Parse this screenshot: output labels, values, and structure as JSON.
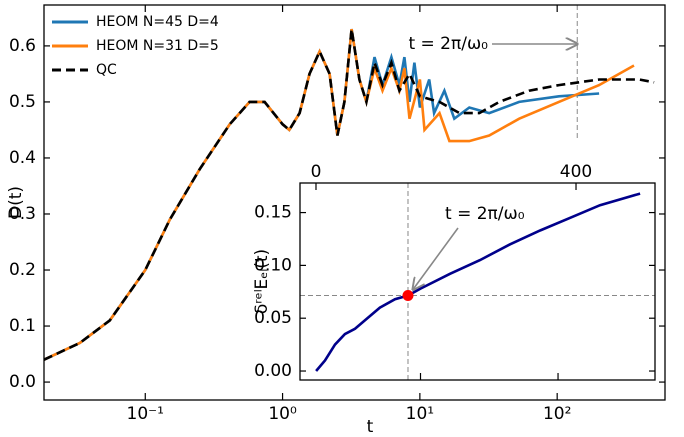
{
  "chart_data": [
    {
      "type": "line",
      "x_label": "t",
      "y_label": "D(t)",
      "xscale": "log",
      "xlim": [
        0.0183,
        610
      ],
      "ylim": [
        -0.032,
        0.673
      ],
      "xticks": [
        {
          "value": 0.1,
          "label": "10⁻¹"
        },
        {
          "value": 1,
          "label": "10⁰"
        },
        {
          "value": 10,
          "label": "10¹"
        },
        {
          "value": 100,
          "label": "10²"
        }
      ],
      "yticks": [
        {
          "value": 0,
          "label": "0.0"
        },
        0.1,
        0.2,
        0.3,
        0.4,
        0.5,
        0.6
      ],
      "legend": "upper left",
      "vline": 140,
      "annotation": "t = 2π/ω₀",
      "series": [
        {
          "name": "HEOM N=45 D=4",
          "color": "#1f77b4",
          "x": [
            0.0183,
            0.0334,
            0.0552,
            0.1,
            0.151,
            0.249,
            0.412,
            0.575,
            0.74,
            1.0,
            1.12,
            1.33,
            1.57,
            1.86,
            2.2,
            2.51,
            2.82,
            3.18,
            3.63,
            4.08,
            4.67,
            5.34,
            6.2,
            7.1,
            7.71,
            8.4,
            9.12,
            10,
            11.7,
            12.7,
            15.1,
            17.8,
            22.9,
            32,
            52.9,
            103,
            202
          ],
          "values": [
            0.04,
            0.07,
            0.11,
            0.2,
            0.29,
            0.38,
            0.46,
            0.5,
            0.5,
            0.46,
            0.45,
            0.48,
            0.55,
            0.59,
            0.55,
            0.44,
            0.5,
            0.63,
            0.54,
            0.5,
            0.58,
            0.53,
            0.58,
            0.53,
            0.58,
            0.5,
            0.57,
            0.49,
            0.54,
            0.48,
            0.52,
            0.47,
            0.49,
            0.48,
            0.5,
            0.51,
            0.515
          ]
        },
        {
          "name": "HEOM N=31 D=5",
          "color": "#ff7f0e",
          "x": [
            0.0183,
            0.0334,
            0.0552,
            0.1,
            0.151,
            0.249,
            0.412,
            0.575,
            0.74,
            1.0,
            1.12,
            1.33,
            1.57,
            1.86,
            2.2,
            2.51,
            2.82,
            3.18,
            3.63,
            4.08,
            4.67,
            5.34,
            6.2,
            7.1,
            7.71,
            8.4,
            10,
            10.8,
            13.9,
            16.4,
            22.9,
            32,
            52.9,
            103,
            202,
            363
          ],
          "values": [
            0.04,
            0.07,
            0.11,
            0.2,
            0.29,
            0.38,
            0.46,
            0.5,
            0.5,
            0.46,
            0.45,
            0.48,
            0.55,
            0.59,
            0.55,
            0.44,
            0.5,
            0.63,
            0.54,
            0.5,
            0.56,
            0.52,
            0.56,
            0.52,
            0.56,
            0.47,
            0.54,
            0.45,
            0.48,
            0.43,
            0.43,
            0.44,
            0.47,
            0.5,
            0.53,
            0.565
          ]
        },
        {
          "name": "QC",
          "color": "#000000",
          "dash": true,
          "x": [
            0.0183,
            0.0334,
            0.0552,
            0.1,
            0.151,
            0.249,
            0.412,
            0.575,
            0.74,
            1.0,
            1.12,
            1.33,
            1.57,
            1.86,
            2.2,
            2.51,
            2.82,
            3.18,
            3.63,
            4.08,
            4.67,
            5.34,
            6.2,
            7.1,
            8.4,
            10,
            13.9,
            19.4,
            27.1,
            37.9,
            62.5,
            103,
            202,
            395,
            508
          ],
          "values": [
            0.04,
            0.07,
            0.11,
            0.2,
            0.29,
            0.38,
            0.46,
            0.5,
            0.5,
            0.46,
            0.45,
            0.48,
            0.55,
            0.59,
            0.55,
            0.44,
            0.5,
            0.63,
            0.54,
            0.5,
            0.57,
            0.53,
            0.57,
            0.52,
            0.55,
            0.51,
            0.5,
            0.48,
            0.48,
            0.5,
            0.52,
            0.53,
            0.54,
            0.54,
            0.535
          ]
        }
      ]
    },
    {
      "type": "line",
      "y_label": "δʳᵉˡEₑₗ(t)",
      "xscale": "log",
      "xlim": [
        1.33,
        507
      ],
      "ylim": [
        -0.0085,
        0.178
      ],
      "xticks": [
        10,
        100
      ],
      "xtick_labels": false,
      "x2lim": [
        -24.6,
        521.5
      ],
      "x2ticks": [
        0,
        400
      ],
      "yticks": [
        {
          "value": 0,
          "label": "0.00"
        },
        0.05,
        {
          "value": 0.1,
          "label": "0.10"
        },
        0.15
      ],
      "annotation": "t = 2π/ω₀",
      "highlight": {
        "x": 8.11,
        "y": 0.0715,
        "color": "#ff0000"
      },
      "series": [
        {
          "color": "#00008b",
          "x": [
            1.74,
            2.02,
            2.39,
            2.82,
            3.34,
            3.95,
            5.07,
            6.53,
            8.11,
            10,
            16.4,
            27.1,
            44.8,
            74,
            122,
            202,
            395
          ],
          "values": [
            0,
            0.01,
            0.025,
            0.035,
            0.04,
            0.048,
            0.06,
            0.068,
            0.0715,
            0.078,
            0.092,
            0.105,
            0.12,
            0.133,
            0.145,
            0.157,
            0.168
          ]
        }
      ]
    }
  ]
}
